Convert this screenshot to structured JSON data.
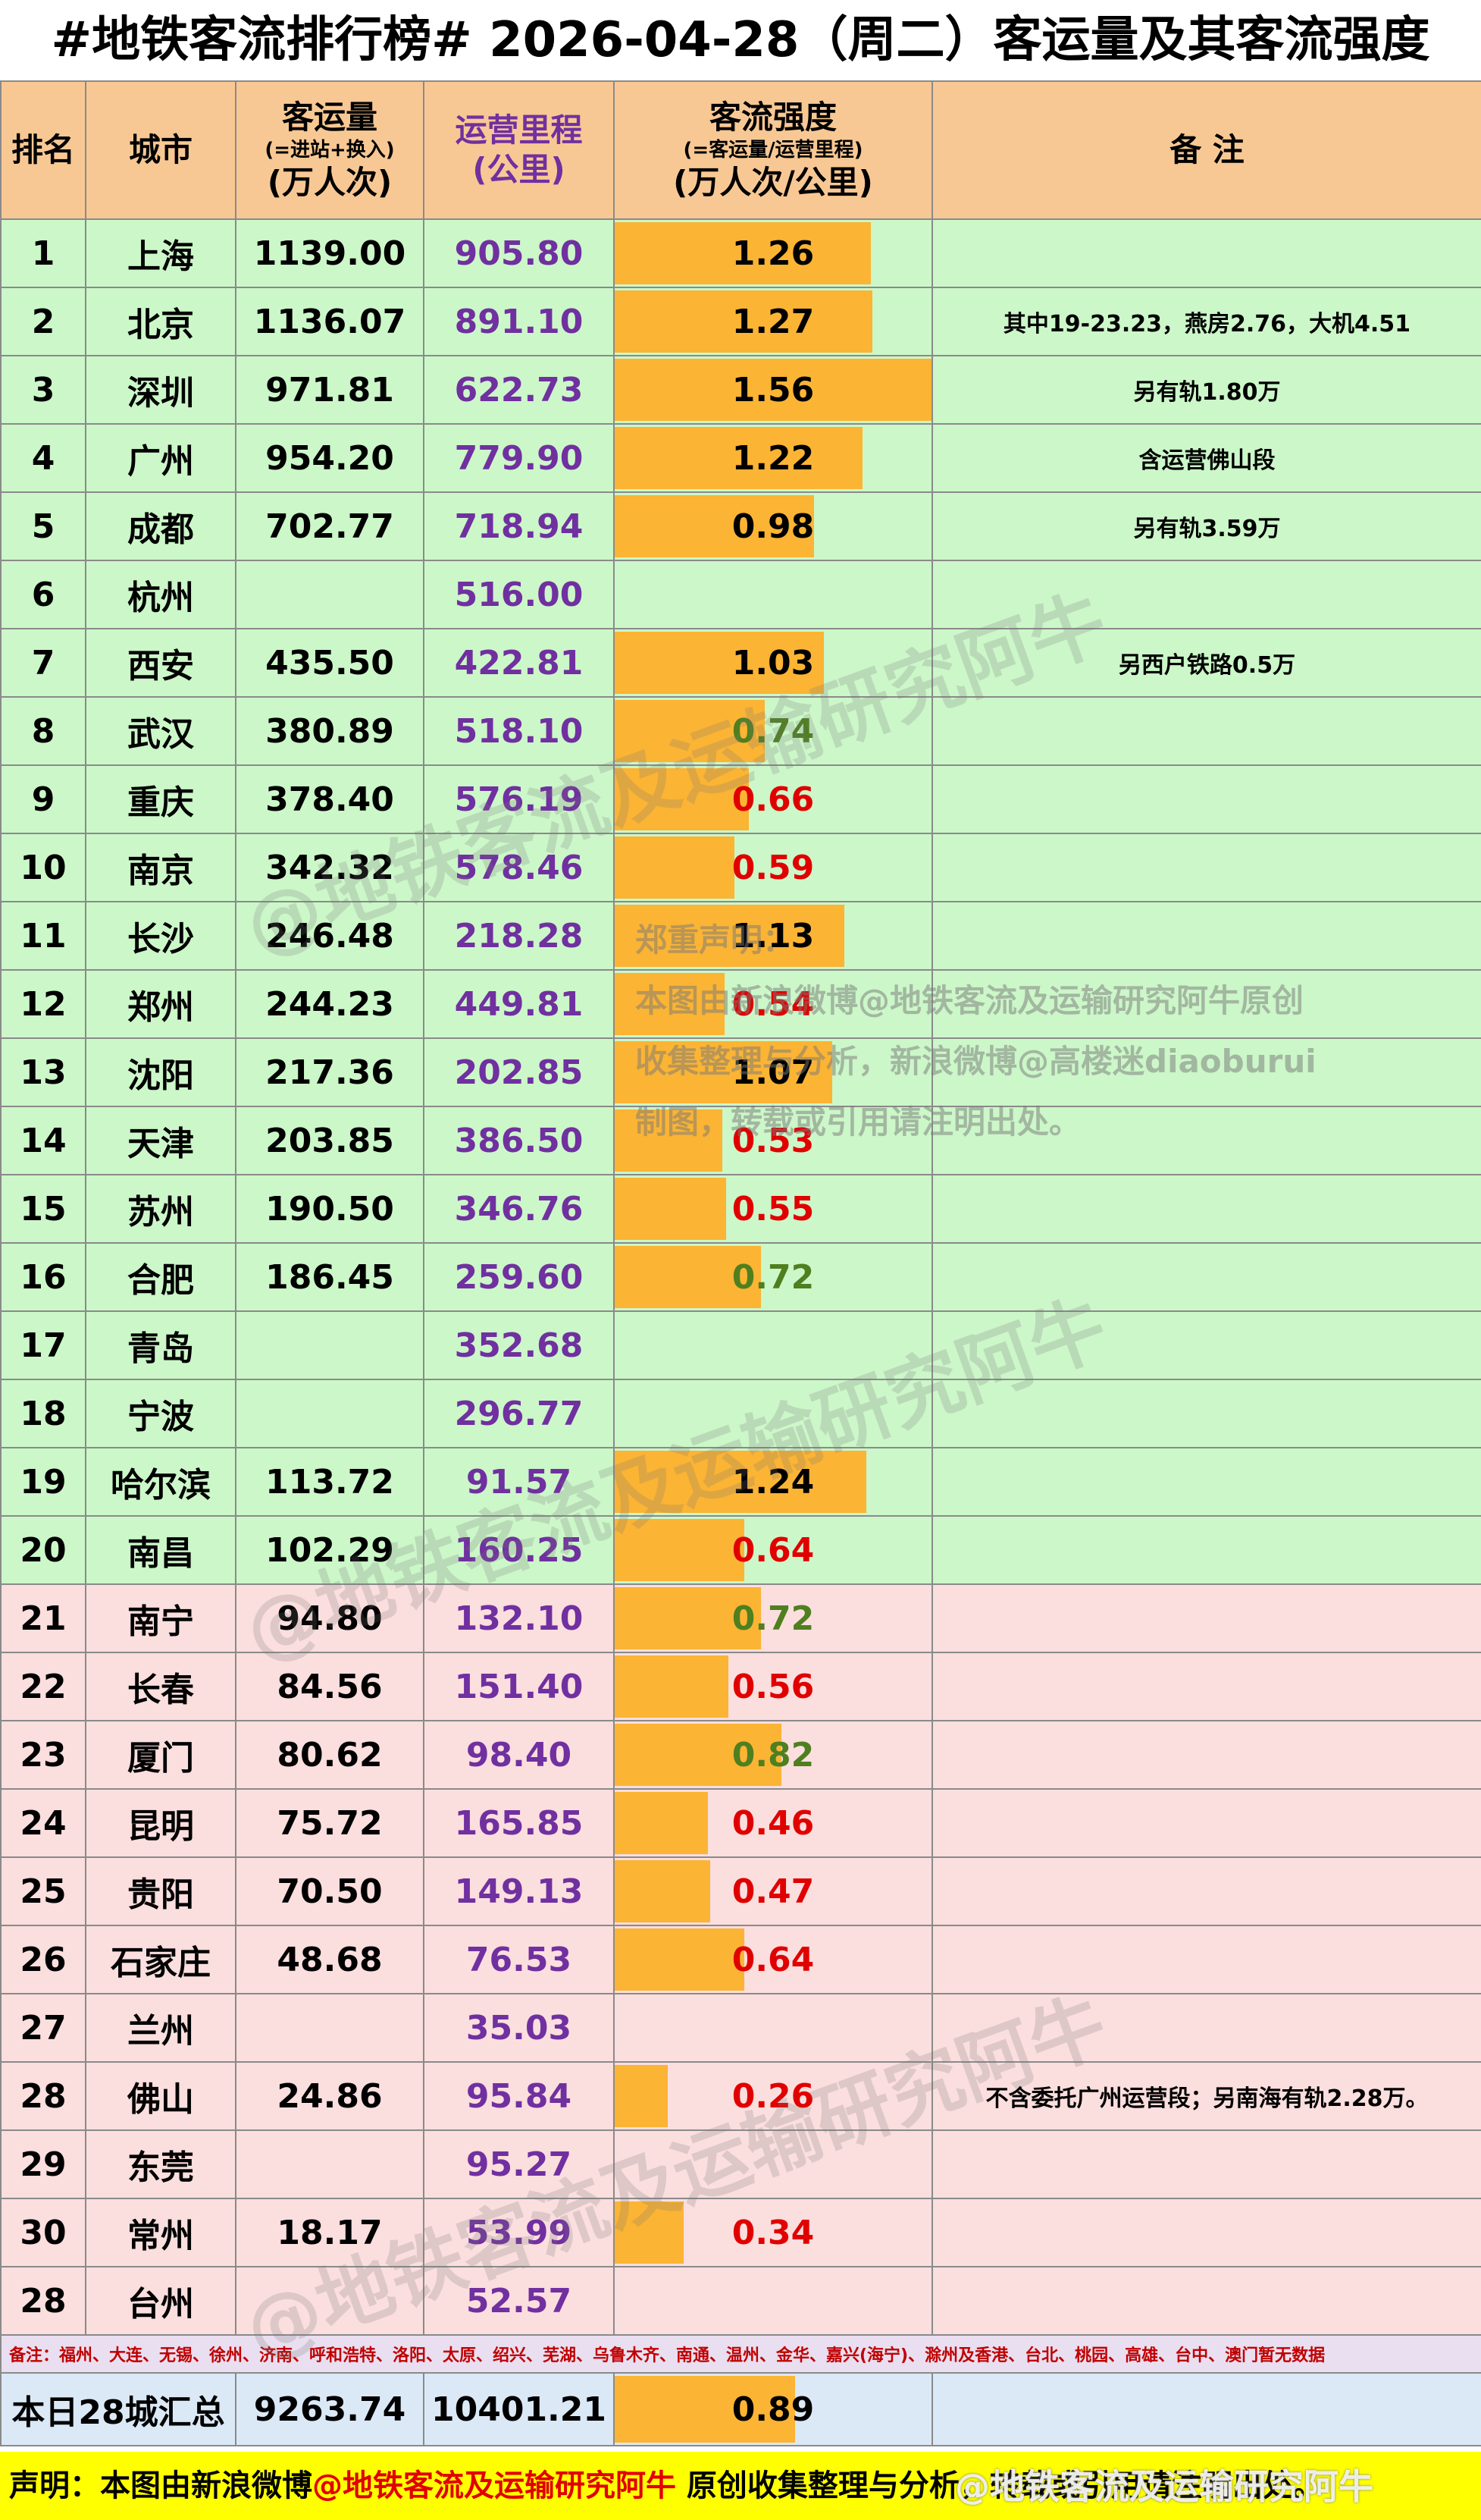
{
  "title": "#地铁客流排行榜# 2026-04-28（周二）客运量及其客流强度",
  "headers": {
    "rank": "排名",
    "city": "城市",
    "volume_main": "客运量",
    "volume_sub": "(=进站+换入)",
    "volume_unit": "(万人次)",
    "mileage_main": "运营里程",
    "mileage_unit": "(公里)",
    "intensity_main": "客流强度",
    "intensity_sub": "(=客运量/运营里程)",
    "intensity_unit": "(万人次/公里)",
    "remark": "备 注"
  },
  "colors": {
    "bar": "#fbb434",
    "green_row": "#ccf7c9",
    "pink_row": "#fbdede",
    "mileage_text": "#7030a0",
    "intensity_red": "#e00000",
    "intensity_green": "#4f7f1f",
    "intensity_black": "#000000",
    "footer_bg": "#ffff00"
  },
  "chart_data": {
    "type": "table",
    "title": "#地铁客流排行榜# 2026-04-28（周二）客运量及其客流强度",
    "intensity_bar_max": 1.56,
    "rows": [
      {
        "rank": "1",
        "city": "上海",
        "volume": "1139.00",
        "mileage": "905.80",
        "intensity": "1.26",
        "intensity_value": 1.26,
        "intensity_color": "black",
        "remark": "",
        "group": "green"
      },
      {
        "rank": "2",
        "city": "北京",
        "volume": "1136.07",
        "mileage": "891.10",
        "intensity": "1.27",
        "intensity_value": 1.27,
        "intensity_color": "black",
        "remark": "其中19-23.23，燕房2.76，大机4.51",
        "group": "green"
      },
      {
        "rank": "3",
        "city": "深圳",
        "volume": "971.81",
        "mileage": "622.73",
        "intensity": "1.56",
        "intensity_value": 1.56,
        "intensity_color": "black",
        "remark": "另有轨1.80万",
        "group": "green"
      },
      {
        "rank": "4",
        "city": "广州",
        "volume": "954.20",
        "mileage": "779.90",
        "intensity": "1.22",
        "intensity_value": 1.22,
        "intensity_color": "black",
        "remark": "含运营佛山段",
        "group": "green"
      },
      {
        "rank": "5",
        "city": "成都",
        "volume": "702.77",
        "mileage": "718.94",
        "intensity": "0.98",
        "intensity_value": 0.98,
        "intensity_color": "black",
        "remark": "另有轨3.59万",
        "group": "green"
      },
      {
        "rank": "6",
        "city": "杭州",
        "volume": "",
        "mileage": "516.00",
        "intensity": "",
        "intensity_value": null,
        "intensity_color": "black",
        "remark": "",
        "group": "green"
      },
      {
        "rank": "7",
        "city": "西安",
        "volume": "435.50",
        "mileage": "422.81",
        "intensity": "1.03",
        "intensity_value": 1.03,
        "intensity_color": "black",
        "remark": "另西户铁路0.5万",
        "group": "green"
      },
      {
        "rank": "8",
        "city": "武汉",
        "volume": "380.89",
        "mileage": "518.10",
        "intensity": "0.74",
        "intensity_value": 0.74,
        "intensity_color": "green",
        "remark": "",
        "group": "green"
      },
      {
        "rank": "9",
        "city": "重庆",
        "volume": "378.40",
        "mileage": "576.19",
        "intensity": "0.66",
        "intensity_value": 0.66,
        "intensity_color": "red",
        "remark": "",
        "group": "green"
      },
      {
        "rank": "10",
        "city": "南京",
        "volume": "342.32",
        "mileage": "578.46",
        "intensity": "0.59",
        "intensity_value": 0.59,
        "intensity_color": "red",
        "remark": "",
        "group": "green"
      },
      {
        "rank": "11",
        "city": "长沙",
        "volume": "246.48",
        "mileage": "218.28",
        "intensity": "1.13",
        "intensity_value": 1.13,
        "intensity_color": "black",
        "remark": "",
        "group": "green"
      },
      {
        "rank": "12",
        "city": "郑州",
        "volume": "244.23",
        "mileage": "449.81",
        "intensity": "0.54",
        "intensity_value": 0.54,
        "intensity_color": "red",
        "remark": "",
        "group": "green"
      },
      {
        "rank": "13",
        "city": "沈阳",
        "volume": "217.36",
        "mileage": "202.85",
        "intensity": "1.07",
        "intensity_value": 1.07,
        "intensity_color": "black",
        "remark": "",
        "group": "green"
      },
      {
        "rank": "14",
        "city": "天津",
        "volume": "203.85",
        "mileage": "386.50",
        "intensity": "0.53",
        "intensity_value": 0.53,
        "intensity_color": "red",
        "remark": "",
        "group": "green"
      },
      {
        "rank": "15",
        "city": "苏州",
        "volume": "190.50",
        "mileage": "346.76",
        "intensity": "0.55",
        "intensity_value": 0.55,
        "intensity_color": "red",
        "remark": "",
        "group": "green"
      },
      {
        "rank": "16",
        "city": "合肥",
        "volume": "186.45",
        "mileage": "259.60",
        "intensity": "0.72",
        "intensity_value": 0.72,
        "intensity_color": "green",
        "remark": "",
        "group": "green"
      },
      {
        "rank": "17",
        "city": "青岛",
        "volume": "",
        "mileage": "352.68",
        "intensity": "",
        "intensity_value": null,
        "intensity_color": "black",
        "remark": "",
        "group": "green"
      },
      {
        "rank": "18",
        "city": "宁波",
        "volume": "",
        "mileage": "296.77",
        "intensity": "",
        "intensity_value": null,
        "intensity_color": "black",
        "remark": "",
        "group": "green"
      },
      {
        "rank": "19",
        "city": "哈尔滨",
        "volume": "113.72",
        "mileage": "91.57",
        "intensity": "1.24",
        "intensity_value": 1.24,
        "intensity_color": "black",
        "remark": "",
        "group": "green"
      },
      {
        "rank": "20",
        "city": "南昌",
        "volume": "102.29",
        "mileage": "160.25",
        "intensity": "0.64",
        "intensity_value": 0.64,
        "intensity_color": "red",
        "remark": "",
        "group": "green"
      },
      {
        "rank": "21",
        "city": "南宁",
        "volume": "94.80",
        "mileage": "132.10",
        "intensity": "0.72",
        "intensity_value": 0.72,
        "intensity_color": "green",
        "remark": "",
        "group": "pink"
      },
      {
        "rank": "22",
        "city": "长春",
        "volume": "84.56",
        "mileage": "151.40",
        "intensity": "0.56",
        "intensity_value": 0.56,
        "intensity_color": "red",
        "remark": "",
        "group": "pink"
      },
      {
        "rank": "23",
        "city": "厦门",
        "volume": "80.62",
        "mileage": "98.40",
        "intensity": "0.82",
        "intensity_value": 0.82,
        "intensity_color": "green",
        "remark": "",
        "group": "pink"
      },
      {
        "rank": "24",
        "city": "昆明",
        "volume": "75.72",
        "mileage": "165.85",
        "intensity": "0.46",
        "intensity_value": 0.46,
        "intensity_color": "red",
        "remark": "",
        "group": "pink"
      },
      {
        "rank": "25",
        "city": "贵阳",
        "volume": "70.50",
        "mileage": "149.13",
        "intensity": "0.47",
        "intensity_value": 0.47,
        "intensity_color": "red",
        "remark": "",
        "group": "pink"
      },
      {
        "rank": "26",
        "city": "石家庄",
        "volume": "48.68",
        "mileage": "76.53",
        "intensity": "0.64",
        "intensity_value": 0.64,
        "intensity_color": "red",
        "remark": "",
        "group": "pink"
      },
      {
        "rank": "27",
        "city": "兰州",
        "volume": "",
        "mileage": "35.03",
        "intensity": "",
        "intensity_value": null,
        "intensity_color": "black",
        "remark": "",
        "group": "pink"
      },
      {
        "rank": "28",
        "city": "佛山",
        "volume": "24.86",
        "mileage": "95.84",
        "intensity": "0.26",
        "intensity_value": 0.26,
        "intensity_color": "red",
        "remark": "不含委托广州运营段；另南海有轨2.28万。",
        "group": "pink"
      },
      {
        "rank": "29",
        "city": "东莞",
        "volume": "",
        "mileage": "95.27",
        "intensity": "",
        "intensity_value": null,
        "intensity_color": "black",
        "remark": "",
        "group": "pink"
      },
      {
        "rank": "30",
        "city": "常州",
        "volume": "18.17",
        "mileage": "53.99",
        "intensity": "0.34",
        "intensity_value": 0.34,
        "intensity_color": "red",
        "remark": "",
        "group": "pink"
      },
      {
        "rank": "28",
        "city": "台州",
        "volume": "",
        "mileage": "52.57",
        "intensity": "",
        "intensity_value": null,
        "intensity_color": "black",
        "remark": "",
        "group": "pink"
      }
    ],
    "total": {
      "label": "本日28城汇总",
      "volume": "9263.74",
      "mileage": "10401.21",
      "intensity": "0.89",
      "intensity_value": 0.89
    }
  },
  "note": "备注：福州、大连、无锡、徐州、济南、呼和浩特、洛阳、太原、绍兴、芜湖、乌鲁木齐、南通、温州、金华、嘉兴(海宁)、滁州及香港、台北、桃园、高雄、台中、澳门暂无数据",
  "watermarks": {
    "brand": "@地铁客流及运输研究阿牛",
    "statement_heading": "郑重声明：",
    "statement_lines": [
      "本图由新浪微博@地铁客流及运输研究阿牛原创",
      "收集整理与分析，新浪微博@高楼迷diaoburui",
      "制图，转载或引用请注明出处。"
    ],
    "corner": "@地铁客流及运输研究阿牛"
  },
  "footer": {
    "prefix": "声明：本图由新浪微博",
    "handle": "@地铁客流及运输研究阿牛",
    "suffix": " 原创收集整理与分析，转载或引用请注明出处。"
  }
}
